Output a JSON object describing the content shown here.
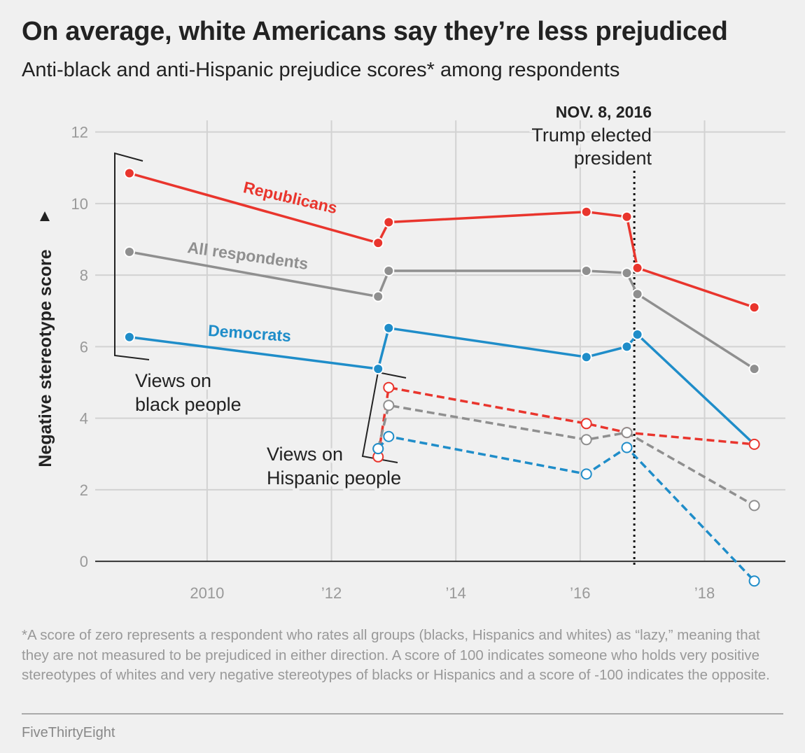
{
  "title": "On average, white Americans say they’re less prejudiced",
  "subtitle": "Anti-black and anti-Hispanic prejudice scores* among respondents",
  "footnote": "*A score of zero represents a respondent who rates all groups (blacks, Hispanics and whites) as “lazy,” meaning that they are not measured to be prejudiced in either direction. A score of 100 indicates someone who holds very positive stereotypes of whites and very negative stereotypes of blacks or Hispanics and a score of -100 indicates the opposite.",
  "source": "FiveThirtyEight",
  "chart_data": {
    "type": "line",
    "ylabel": "Negative stereotype score",
    "xlim": [
      2008.2,
      2019.3
    ],
    "ylim": [
      -0.8,
      12.6
    ],
    "x_ticks": [
      {
        "value": 2010,
        "label": "2010"
      },
      {
        "value": 2012,
        "label": "’12"
      },
      {
        "value": 2014,
        "label": "’14"
      },
      {
        "value": 2016,
        "label": "’16"
      },
      {
        "value": 2018,
        "label": "’18"
      }
    ],
    "y_ticks": [
      {
        "value": 0,
        "label": "0"
      },
      {
        "value": 2,
        "label": "2"
      },
      {
        "value": 4,
        "label": "4"
      },
      {
        "value": 6,
        "label": "6"
      },
      {
        "value": 8,
        "label": "8"
      },
      {
        "value": 10,
        "label": "10"
      },
      {
        "value": 12,
        "label": "12"
      }
    ],
    "grid": true,
    "event": {
      "x": 2016.87,
      "date_label": "NOV. 8, 2016",
      "label_lines": [
        "Trump elected",
        "president"
      ]
    },
    "colors": {
      "republicans": "#e9352d",
      "all": "#8f8f8f",
      "democrats": "#1f8dc9"
    },
    "series": [
      {
        "name": "Republicans",
        "group": "Views on black people",
        "color": "#e9352d",
        "style": "solid",
        "points": [
          [
            2008.75,
            10.85
          ],
          [
            2012.75,
            8.9
          ],
          [
            2012.92,
            9.48
          ],
          [
            2016.1,
            9.77
          ],
          [
            2016.75,
            9.63
          ],
          [
            2016.92,
            8.2
          ],
          [
            2018.8,
            7.1
          ]
        ]
      },
      {
        "name": "All respondents",
        "group": "Views on black people",
        "color": "#8f8f8f",
        "style": "solid",
        "points": [
          [
            2008.75,
            8.65
          ],
          [
            2012.75,
            7.4
          ],
          [
            2012.92,
            8.12
          ],
          [
            2016.1,
            8.12
          ],
          [
            2016.75,
            8.06
          ],
          [
            2016.92,
            7.47
          ],
          [
            2018.8,
            5.38
          ]
        ]
      },
      {
        "name": "Democrats",
        "group": "Views on black people",
        "color": "#1f8dc9",
        "style": "solid",
        "points": [
          [
            2008.75,
            6.27
          ],
          [
            2012.75,
            5.38
          ],
          [
            2012.92,
            6.52
          ],
          [
            2016.1,
            5.71
          ],
          [
            2016.75,
            6.0
          ],
          [
            2016.92,
            6.34
          ],
          [
            2018.8,
            3.27
          ]
        ]
      },
      {
        "group": "Views on Hispanic people",
        "color": "#e9352d",
        "style": "dashed",
        "points": [
          [
            2012.75,
            2.92
          ],
          [
            2012.92,
            4.86
          ],
          [
            2016.1,
            3.85
          ],
          [
            2016.75,
            3.6
          ],
          [
            2018.8,
            3.27
          ]
        ]
      },
      {
        "group": "Views on Hispanic people",
        "color": "#8f8f8f",
        "style": "dashed",
        "points": [
          [
            2012.75,
            3.15
          ],
          [
            2012.92,
            4.36
          ],
          [
            2016.1,
            3.4
          ],
          [
            2016.75,
            3.6
          ],
          [
            2018.8,
            1.56
          ]
        ]
      },
      {
        "group": "Views on Hispanic people",
        "color": "#1f8dc9",
        "style": "dashed",
        "points": [
          [
            2012.75,
            3.15
          ],
          [
            2012.92,
            3.49
          ],
          [
            2016.1,
            2.44
          ],
          [
            2016.75,
            3.18
          ],
          [
            2018.8,
            -0.55
          ]
        ]
      }
    ],
    "annotations": {
      "black_group": [
        "Views on",
        "black people"
      ],
      "hispanic_group": [
        "Views on",
        "Hispanic people"
      ]
    }
  }
}
